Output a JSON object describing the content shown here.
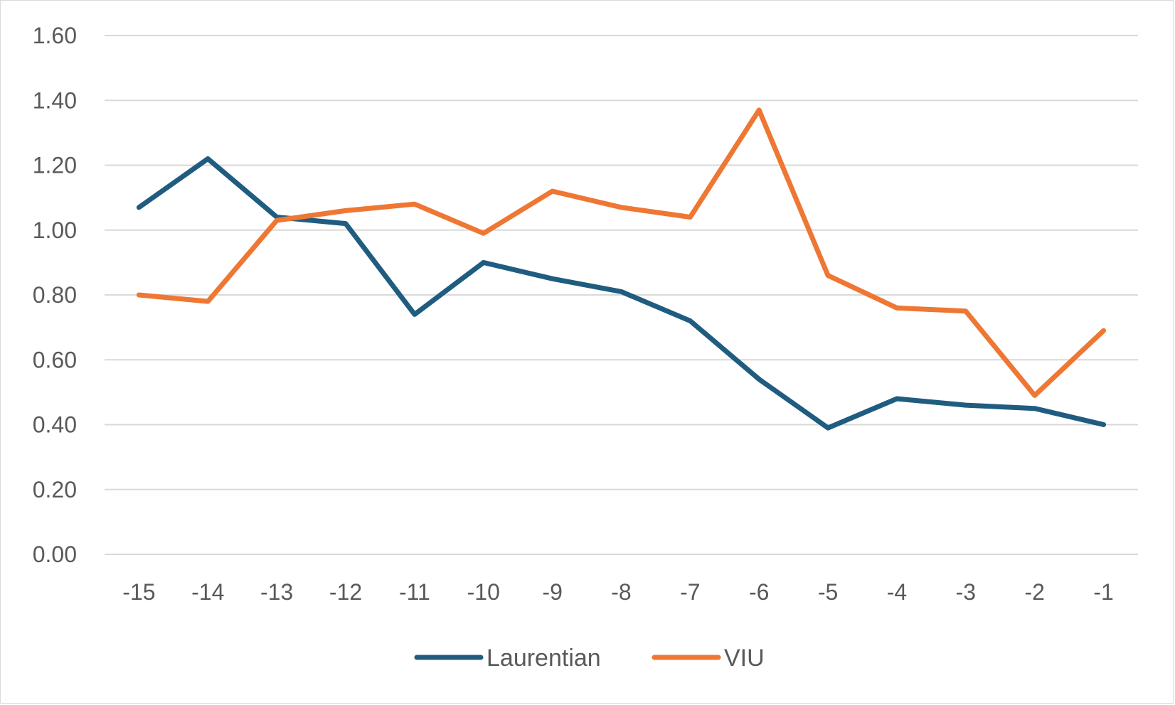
{
  "chart_data": {
    "type": "line",
    "title": "",
    "xlabel": "",
    "ylabel": "",
    "categories": [
      "-15",
      "-14",
      "-13",
      "-12",
      "-11",
      "-10",
      "-9",
      "-8",
      "-7",
      "-6",
      "-5",
      "-4",
      "-3",
      "-2",
      "-1"
    ],
    "ylim": [
      0,
      1.6
    ],
    "yticks": [
      "0.00",
      "0.20",
      "0.40",
      "0.60",
      "0.80",
      "1.00",
      "1.20",
      "1.40",
      "1.60"
    ],
    "grid": true,
    "legend_position": "bottom",
    "series": [
      {
        "name": "Laurentian",
        "color": "#1f5c80",
        "values": [
          1.07,
          1.22,
          1.04,
          1.02,
          0.74,
          0.9,
          0.85,
          0.81,
          0.72,
          0.54,
          0.39,
          0.48,
          0.46,
          0.45,
          0.4
        ]
      },
      {
        "name": "VIU",
        "color": "#ee7733",
        "values": [
          0.8,
          0.78,
          1.03,
          1.06,
          1.08,
          0.99,
          1.12,
          1.07,
          1.04,
          1.37,
          0.86,
          0.76,
          0.75,
          0.49,
          0.69
        ]
      }
    ]
  }
}
